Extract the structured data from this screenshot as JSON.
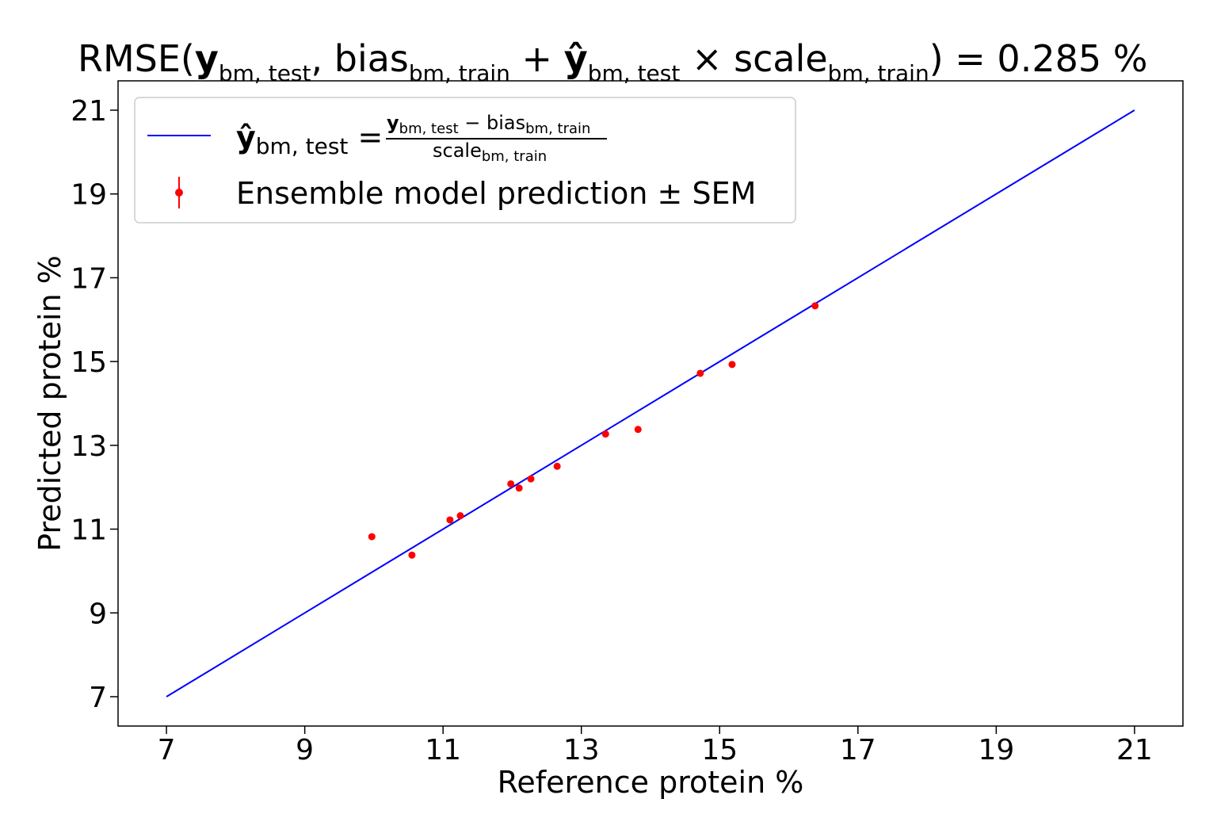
{
  "chart_data": {
    "type": "scatter",
    "title": {
      "prefix": "RMSE(",
      "y": "y",
      "y_sub": "bm, test",
      "sep": ", ",
      "bias": "bias",
      "bias_sub": "bm, train",
      "plus": " + ",
      "yhat": "ŷ",
      "yhat_sub": "bm, test",
      "times": " × ",
      "scale": "scale",
      "scale_sub": "bm, train",
      "suffix": ") = 0.285 %"
    },
    "xlabel": "Reference protein %",
    "ylabel": "Predicted protein %",
    "xlim": [
      6.3,
      21.7
    ],
    "ylim": [
      6.3,
      21.7
    ],
    "xticks": [
      7,
      9,
      11,
      13,
      15,
      17,
      19,
      21
    ],
    "yticks": [
      7,
      9,
      11,
      13,
      15,
      17,
      19,
      21
    ],
    "grid": false,
    "legend_placement": "upper-left",
    "series": [
      {
        "name": "line",
        "kind": "line",
        "color": "#0000ff",
        "points": [
          [
            7,
            7
          ],
          [
            21,
            21
          ]
        ],
        "legend": {
          "lhs": "ŷ",
          "lhs_sub": "bm, test",
          "eq": " = ",
          "num_y": "y",
          "num_y_sub": "bm, test",
          "num_minus": " − bias",
          "num_bias_sub": "bm, train",
          "den": "scale",
          "den_sub": "bm, train"
        }
      },
      {
        "name": "Ensemble model prediction ± SEM",
        "kind": "scatter",
        "color": "#ff0000",
        "points": [
          [
            9.97,
            10.82
          ],
          [
            10.55,
            10.38
          ],
          [
            11.1,
            11.22
          ],
          [
            11.25,
            11.32
          ],
          [
            11.98,
            12.08
          ],
          [
            12.1,
            11.98
          ],
          [
            12.27,
            12.2
          ],
          [
            12.65,
            12.5
          ],
          [
            13.35,
            13.27
          ],
          [
            13.82,
            13.38
          ],
          [
            14.72,
            14.72
          ],
          [
            15.18,
            14.93
          ],
          [
            16.38,
            16.33
          ]
        ]
      }
    ]
  }
}
